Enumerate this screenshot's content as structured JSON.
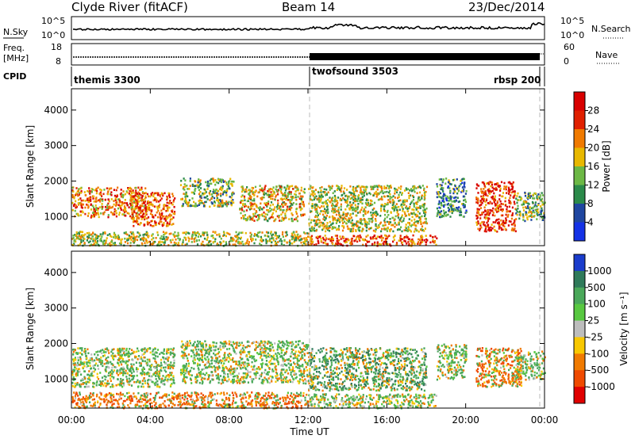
{
  "header": {
    "station": "Clyde River (fitACF)",
    "beam": "Beam 14",
    "date": "23/Dec/2014"
  },
  "aux": {
    "nsky_label": "N.Sky",
    "nsky_ticks": [
      "10^5",
      "10^0"
    ],
    "nsearch_label": "N.Search",
    "nsearch_ticks": [
      "10^5",
      "10^0"
    ],
    "freq_label": "Freq.",
    "freq_unit": "[MHz]",
    "freq_ticks": [
      "18",
      "8"
    ],
    "nave_label": "Nave",
    "nave_ticks": [
      "60",
      "0"
    ],
    "cpid_label": "CPID"
  },
  "cpid_segments": [
    {
      "name": "themis 3300",
      "start_hour": 0,
      "end_hour": 12
    },
    {
      "name": "twofsound 3503",
      "start_hour": 12,
      "end_hour": 23.5
    },
    {
      "name": "rbsp 200",
      "start_hour": 23.5,
      "end_hour": 24
    }
  ],
  "chart_data": [
    {
      "type": "heatmap",
      "panel": "power",
      "ylabel": "Slant Range [km]",
      "xlabel": "",
      "x_ticks": [
        "00:00",
        "04:00",
        "08:00",
        "12:00",
        "16:00",
        "20:00",
        "00:00"
      ],
      "xlim_hours": [
        0,
        24
      ],
      "y_ticks": [
        "1000",
        "2000",
        "3000",
        "4000"
      ],
      "ylim": [
        180,
        4600
      ],
      "colorbar_label": "Power [dB]",
      "colorbar_ticks": [
        "4",
        "8",
        "12",
        "16",
        "20",
        "24",
        "28"
      ],
      "colorbar_colors": [
        "#1432e6",
        "#1f46a0",
        "#2b8a4a",
        "#6cb845",
        "#e8b800",
        "#f07a00",
        "#e02000",
        "#d80000"
      ],
      "scatter_bands": [
        {
          "start_hour": 0.0,
          "end_hour": 3.8,
          "range_min": 1000,
          "range_max": 1850,
          "level": 24
        },
        {
          "start_hour": 3.0,
          "end_hour": 5.2,
          "range_min": 750,
          "range_max": 1700,
          "level": 26
        },
        {
          "start_hour": 5.5,
          "end_hour": 8.2,
          "range_min": 1300,
          "range_max": 2100,
          "level": 16
        },
        {
          "start_hour": 8.5,
          "end_hour": 11.8,
          "range_min": 900,
          "range_max": 1900,
          "level": 20
        },
        {
          "start_hour": 0.0,
          "end_hour": 12.0,
          "range_min": 200,
          "range_max": 600,
          "level": 18
        },
        {
          "start_hour": 12.0,
          "end_hour": 18.0,
          "range_min": 600,
          "range_max": 1900,
          "level": 18
        },
        {
          "start_hour": 12.0,
          "end_hour": 18.5,
          "range_min": 200,
          "range_max": 500,
          "level": 26
        },
        {
          "start_hour": 18.5,
          "end_hour": 20.0,
          "range_min": 1000,
          "range_max": 2100,
          "level": 12
        },
        {
          "start_hour": 20.5,
          "end_hour": 22.5,
          "range_min": 600,
          "range_max": 2000,
          "level": 28
        },
        {
          "start_hour": 22.5,
          "end_hour": 24.0,
          "range_min": 900,
          "range_max": 1700,
          "level": 16
        }
      ]
    },
    {
      "type": "heatmap",
      "panel": "velocity",
      "ylabel": "Slant Range [km]",
      "xlabel": "Time UT",
      "x_ticks": [
        "00:00",
        "04:00",
        "08:00",
        "12:00",
        "16:00",
        "20:00",
        "00:00"
      ],
      "xlim_hours": [
        0,
        24
      ],
      "y_ticks": [
        "1000",
        "2000",
        "3000",
        "4000"
      ],
      "ylim": [
        180,
        4600
      ],
      "colorbar_label": "Velocity [m s⁻¹]",
      "colorbar_ticks": [
        "1000",
        "500",
        "100",
        "25",
        "-25",
        "-100",
        "-500",
        "-1000"
      ],
      "colorbar_colors": [
        "#1a3ccc",
        "#2f7a5a",
        "#4aa85a",
        "#58c840",
        "#bdbdbd",
        "#f8c800",
        "#f07a00",
        "#ef4a00",
        "#e00000"
      ],
      "scatter_bands": [
        {
          "start_hour": 0.0,
          "end_hour": 5.2,
          "range_min": 800,
          "range_max": 1900,
          "level": 100
        },
        {
          "start_hour": 5.5,
          "end_hour": 12.0,
          "range_min": 900,
          "range_max": 2100,
          "level": 100
        },
        {
          "start_hour": 0.0,
          "end_hour": 12.0,
          "range_min": 200,
          "range_max": 650,
          "level": -300
        },
        {
          "start_hour": 12.0,
          "end_hour": 18.0,
          "range_min": 700,
          "range_max": 1900,
          "level": 300
        },
        {
          "start_hour": 12.0,
          "end_hour": 18.5,
          "range_min": 200,
          "range_max": 600,
          "level": 50
        },
        {
          "start_hour": 18.5,
          "end_hour": 20.0,
          "range_min": 1000,
          "range_max": 2000,
          "level": 100
        },
        {
          "start_hour": 20.5,
          "end_hour": 22.8,
          "range_min": 800,
          "range_max": 1900,
          "level": -300
        },
        {
          "start_hour": 22.5,
          "end_hour": 24.0,
          "range_min": 1000,
          "range_max": 1800,
          "level": 100
        }
      ]
    }
  ]
}
